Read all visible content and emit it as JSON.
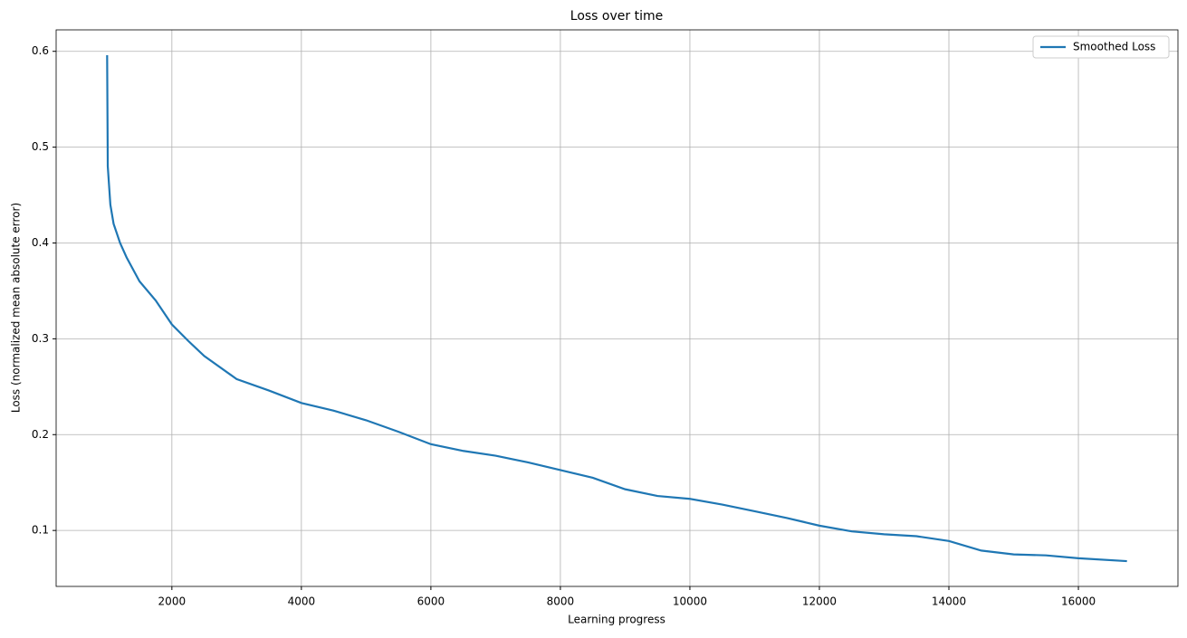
{
  "chart_data": {
    "type": "line",
    "title": "Loss over time",
    "x_label": "Learning progress",
    "y_label": "Loss (normalized mean absolute error)",
    "x": [
      1000,
      1010,
      1050,
      1100,
      1200,
      1300,
      1500,
      1750,
      2000,
      2250,
      2500,
      3000,
      3500,
      4000,
      4500,
      5000,
      5500,
      6000,
      6500,
      7000,
      7500,
      8000,
      8500,
      9000,
      9500,
      10000,
      10500,
      11000,
      11500,
      12000,
      12500,
      13000,
      13500,
      14000,
      14500,
      15000,
      15500,
      16000,
      16750
    ],
    "series": [
      {
        "name": "Smoothed Loss",
        "color": "#1f77b4",
        "values": [
          0.596,
          0.48,
          0.44,
          0.42,
          0.4,
          0.385,
          0.36,
          0.34,
          0.315,
          0.298,
          0.282,
          0.258,
          0.246,
          0.233,
          0.225,
          0.215,
          0.203,
          0.19,
          0.183,
          0.178,
          0.171,
          0.163,
          0.155,
          0.143,
          0.136,
          0.133,
          0.127,
          0.12,
          0.113,
          0.105,
          0.099,
          0.096,
          0.094,
          0.089,
          0.079,
          0.075,
          0.074,
          0.071,
          0.068
        ]
      }
    ],
    "xlim": [
      212.5,
      17537.5
    ],
    "xticks": [
      2000,
      4000,
      6000,
      8000,
      10000,
      12000,
      14000,
      16000
    ],
    "ylim": [
      0.0416,
      0.6224
    ],
    "yticks": [
      0.1,
      0.2,
      0.3,
      0.4,
      0.5,
      0.6
    ],
    "grid": true,
    "legend": "upper right"
  }
}
